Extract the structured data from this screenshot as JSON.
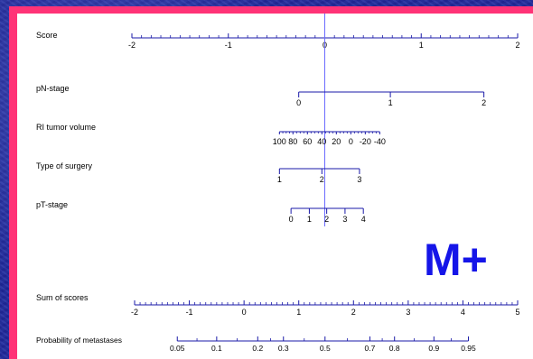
{
  "chart_data": {
    "type": "nomogram",
    "annotation": "M+",
    "colors": {
      "axis": "#1a1aa8",
      "annotation": "#1515e8",
      "frame": "#ff3377",
      "reference_line": "#6b6bff"
    },
    "score_axis": {
      "label": "Score",
      "range": [
        -2,
        2
      ],
      "ticks": [
        "-2",
        "-1",
        "0",
        "1",
        "2"
      ]
    },
    "variables": [
      {
        "label": "pN-stage",
        "levels": [
          "0",
          "1",
          "2"
        ],
        "scores": [
          -0.27,
          0.68,
          1.65
        ]
      },
      {
        "label": "RI tumor volume",
        "levels": [
          "100",
          "80",
          "60",
          "40",
          "20",
          "0",
          "-20",
          "-40"
        ],
        "scores": [
          -0.47,
          -0.33,
          -0.18,
          -0.03,
          0.12,
          0.27,
          0.42,
          0.57
        ]
      },
      {
        "label": "Type of surgery",
        "levels": [
          "1",
          "2",
          "3"
        ],
        "scores": [
          -0.47,
          -0.03,
          0.36
        ]
      },
      {
        "label": "pT-stage",
        "levels": [
          "0",
          "1",
          "2",
          "3",
          "4"
        ],
        "scores": [
          -0.35,
          -0.16,
          0.02,
          0.21,
          0.4
        ]
      }
    ],
    "reference_line_score": 0,
    "sum_axis": {
      "label": "Sum of scores",
      "range": [
        -2,
        5
      ],
      "ticks": [
        "-2",
        "-1",
        "0",
        "1",
        "2",
        "3",
        "4",
        "5"
      ]
    },
    "probability_axis": {
      "label": "Probability of metastases",
      "ticks": [
        "0.05",
        "0.1",
        "0.2",
        "0.3",
        "0.5",
        "0.7",
        "0.8",
        "0.9",
        "0.95"
      ],
      "sum_positions": [
        -1.22,
        -0.5,
        0.25,
        0.72,
        1.48,
        2.3,
        2.75,
        3.47,
        4.1
      ]
    }
  }
}
